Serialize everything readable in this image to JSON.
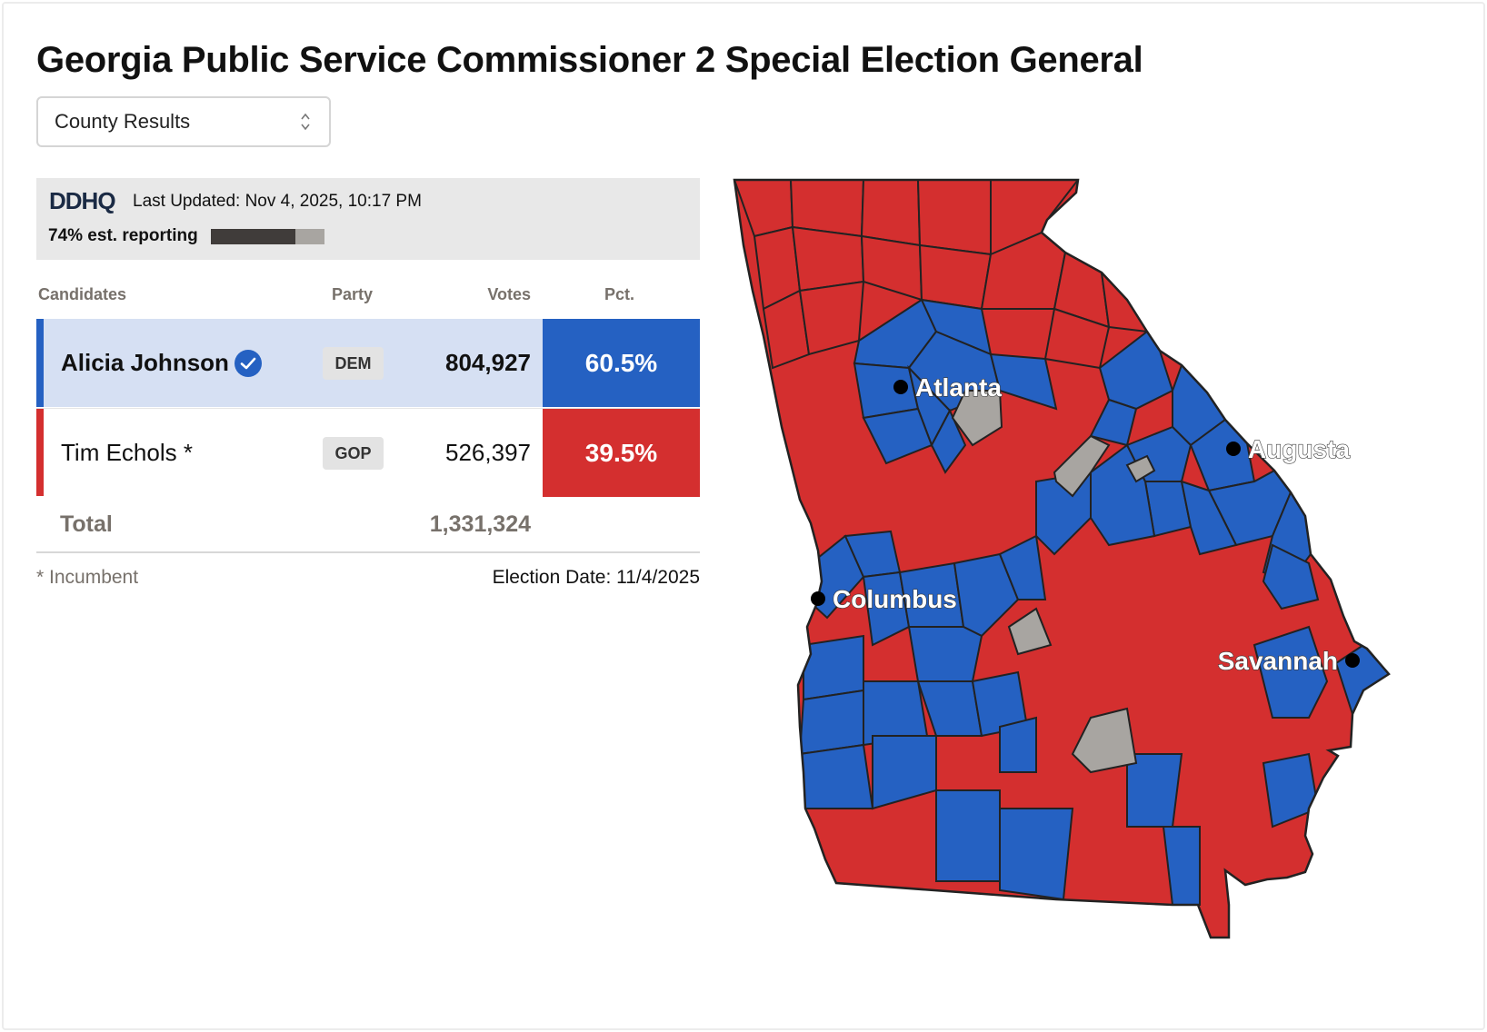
{
  "title": "Georgia Public Service Commissioner 2 Special Election General",
  "view_select": {
    "selected": "County Results"
  },
  "status_bar": {
    "logo": "DDHQ",
    "last_updated": "Last Updated: Nov 4, 2025, 10:17 PM",
    "reporting_text": "74% est. reporting",
    "reporting_pct": 74
  },
  "table": {
    "headers": {
      "candidates": "Candidates",
      "party": "Party",
      "votes": "Votes",
      "pct": "Pct."
    },
    "rows": [
      {
        "name": "Alicia Johnson",
        "party": "DEM",
        "votes": "804,927",
        "pct": "60.5%",
        "winner": true,
        "color": "#2561c2"
      },
      {
        "name": "Tim Echols *",
        "party": "GOP",
        "votes": "526,397",
        "pct": "39.5%",
        "winner": false,
        "color": "#d42f2f"
      }
    ],
    "total_label": "Total",
    "total_votes": "1,331,324"
  },
  "footer": {
    "note": "* Incumbent",
    "election_date": "Election Date: 11/4/2025"
  },
  "map": {
    "state": "Georgia",
    "colors": {
      "dem": "#2561c2",
      "gop": "#d42f2f",
      "no_results": "#a8a5a1",
      "border": "#222222"
    },
    "cities": [
      {
        "name": "Atlanta"
      },
      {
        "name": "Augusta"
      },
      {
        "name": "Columbus"
      },
      {
        "name": "Savannah"
      }
    ]
  }
}
